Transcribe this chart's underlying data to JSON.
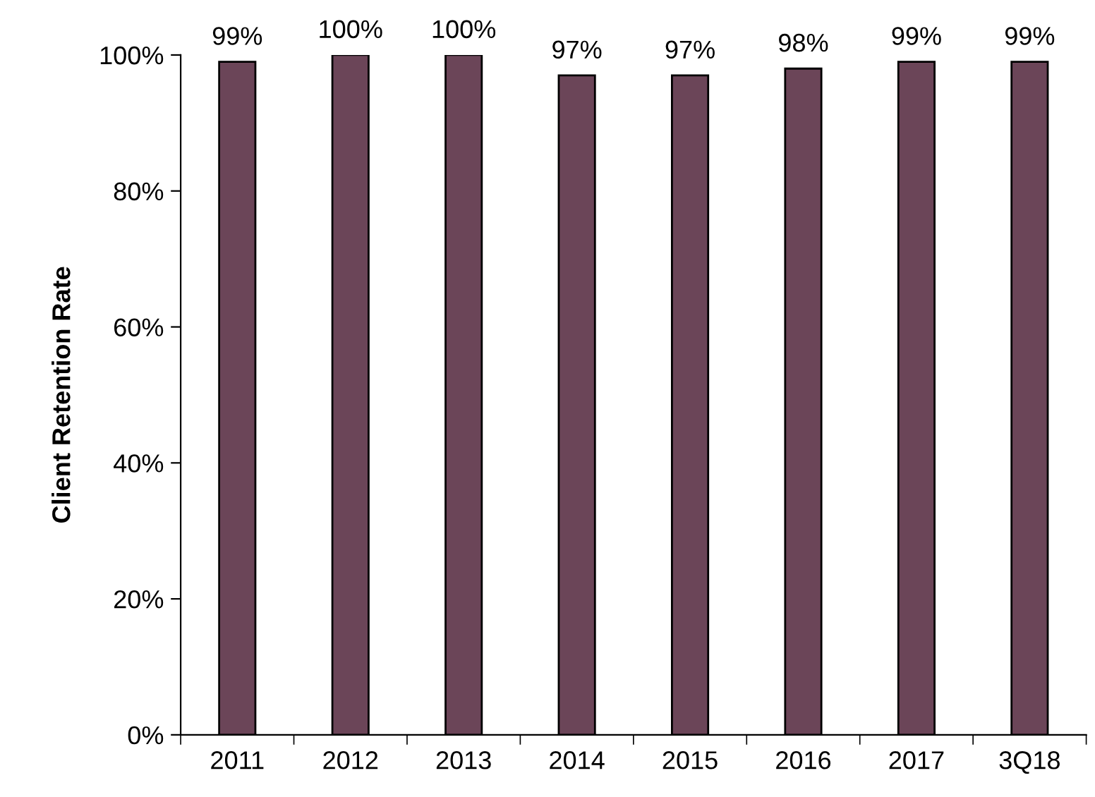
{
  "chart_data": {
    "type": "bar",
    "ylabel": "Client Retention Rate",
    "categories": [
      "2011",
      "2012",
      "2013",
      "2014",
      "2015",
      "2016",
      "2017",
      "3Q18"
    ],
    "values": [
      99,
      100,
      100,
      97,
      97,
      98,
      99,
      99
    ],
    "value_labels": [
      "99%",
      "100%",
      "100%",
      "97%",
      "97%",
      "98%",
      "99%",
      "99%"
    ],
    "color": "#6b4558",
    "ylim": [
      0,
      100
    ],
    "yticks": [
      {
        "value": 0,
        "label": "0%"
      },
      {
        "value": 20,
        "label": "20%"
      },
      {
        "value": 40,
        "label": "40%"
      },
      {
        "value": 60,
        "label": "60%"
      },
      {
        "value": 80,
        "label": "80%"
      },
      {
        "value": 100,
        "label": "100%"
      }
    ],
    "grid": false,
    "legend": false
  }
}
